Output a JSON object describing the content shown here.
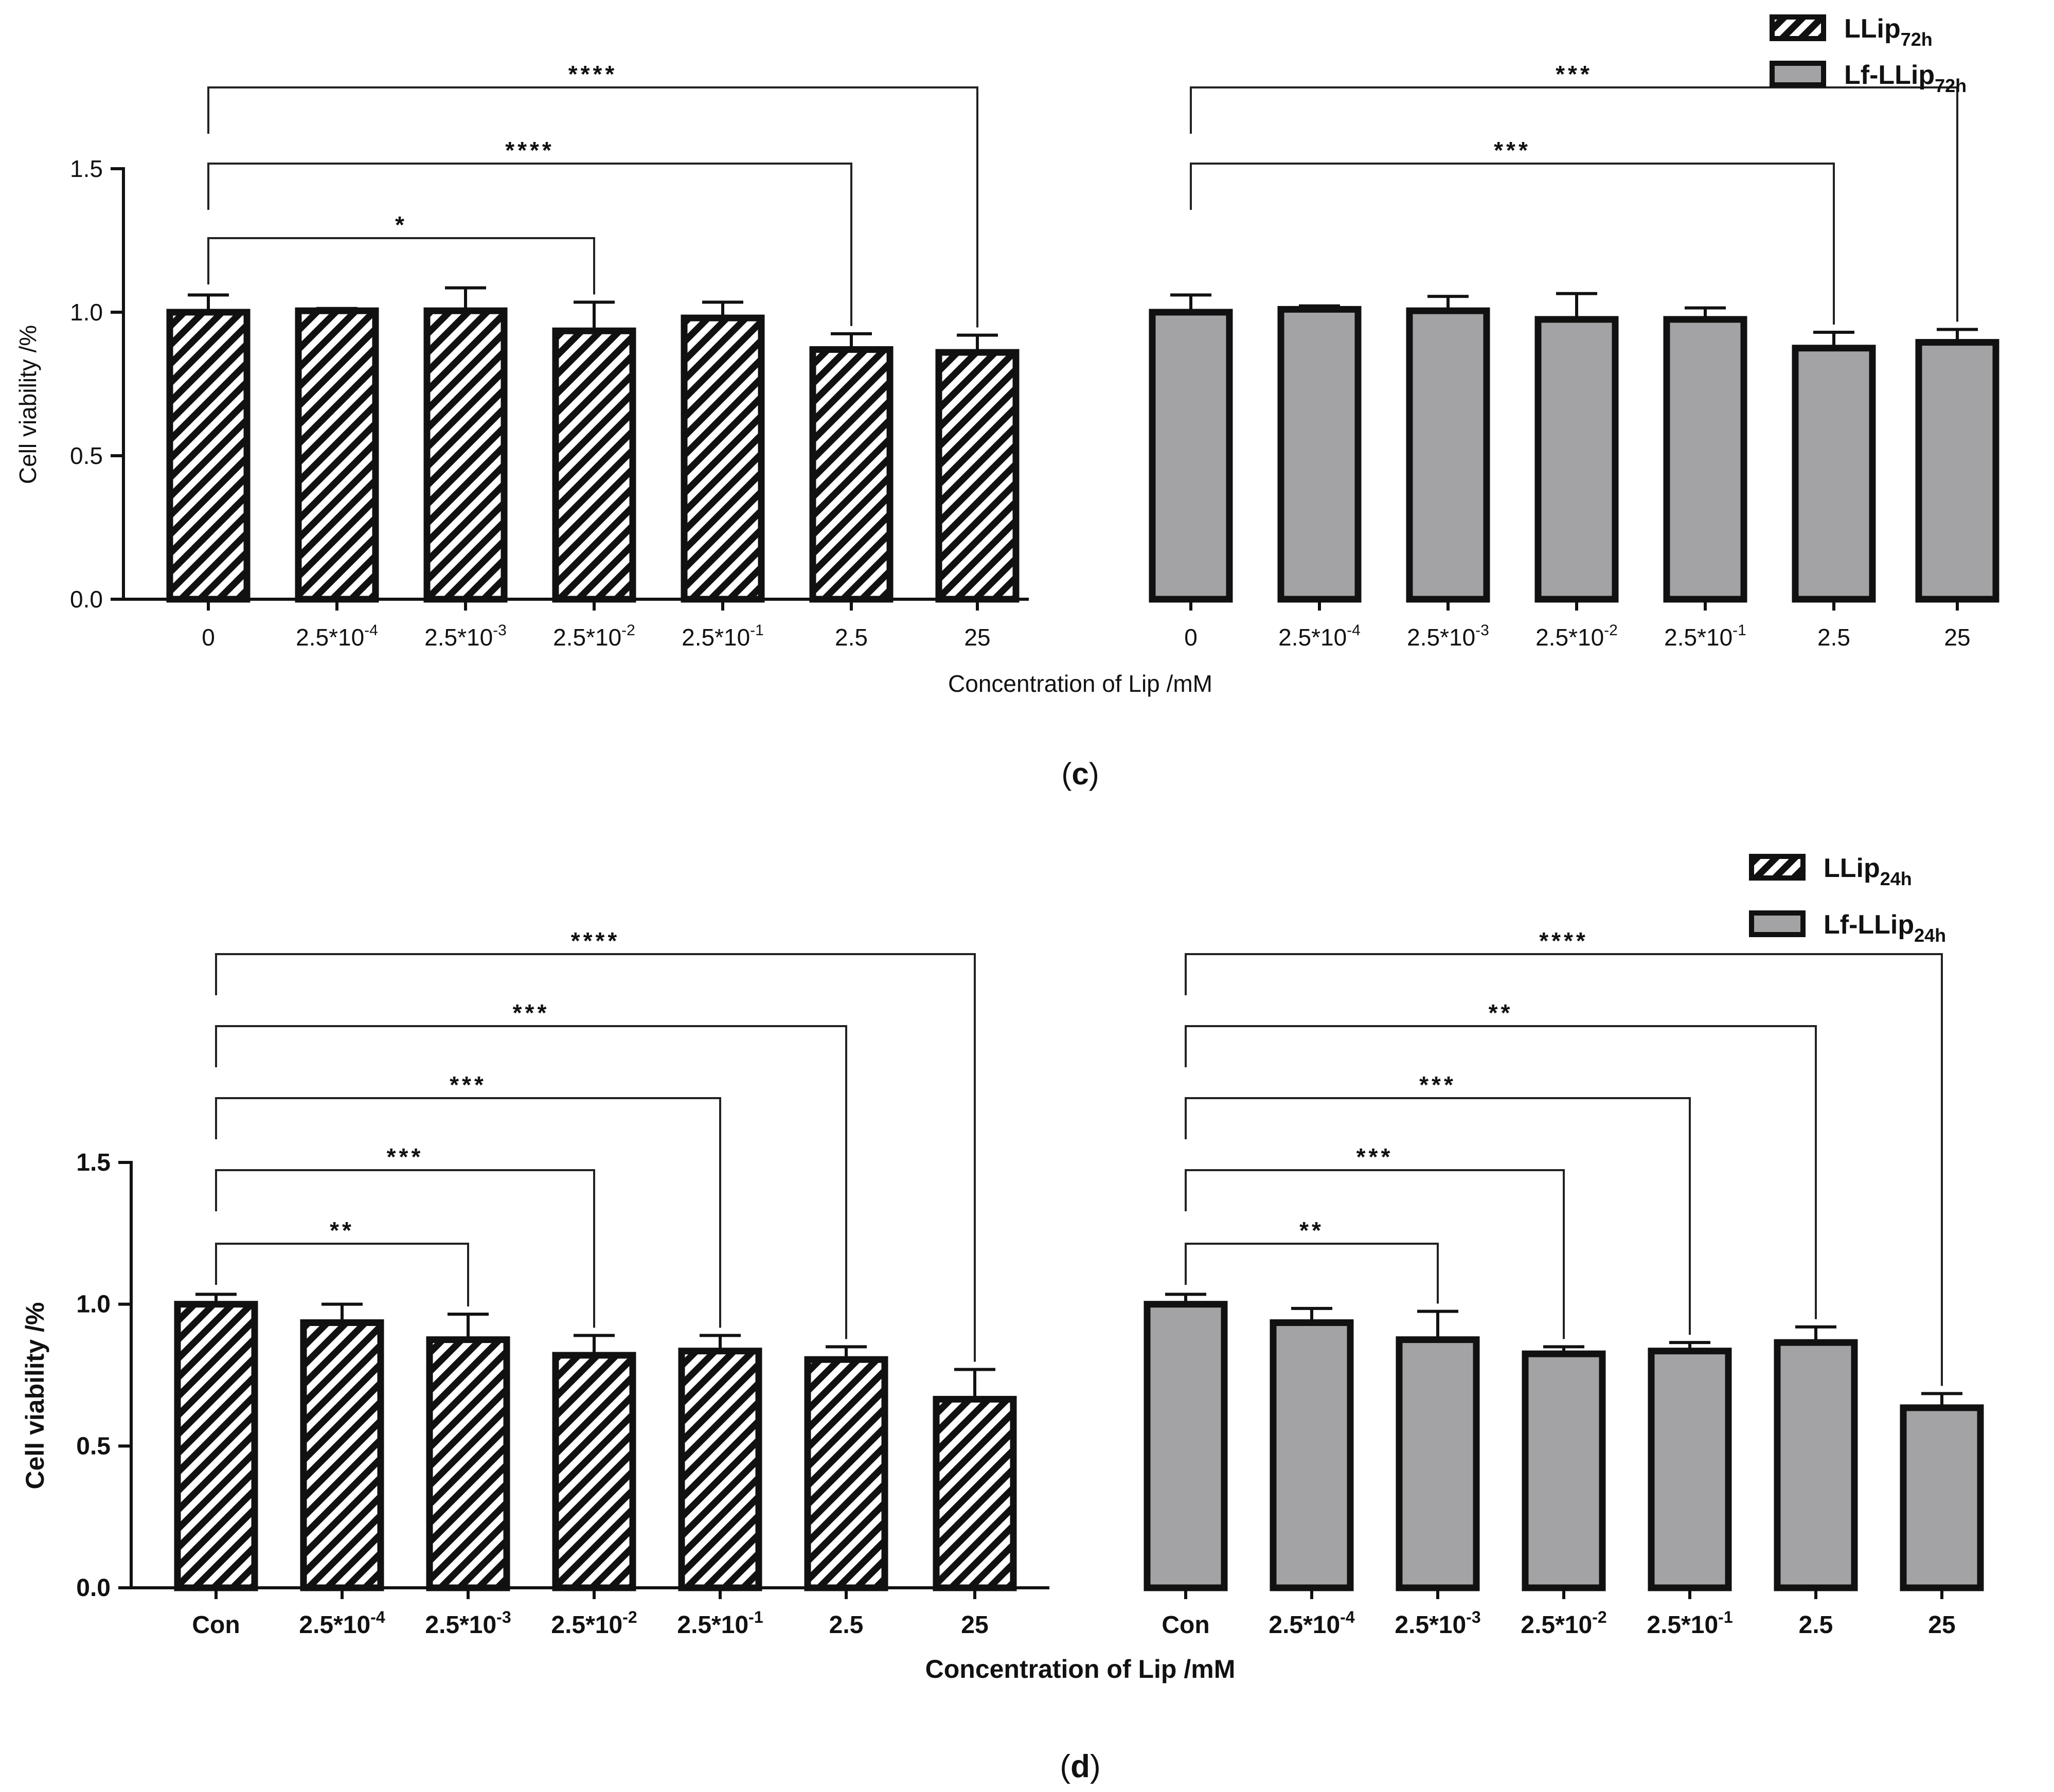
{
  "chart_data": [
    {
      "panel_label": "(c)",
      "type": "bar",
      "ylabel": "Cell viability /%",
      "xlabel": "Concentration of Lip /mM",
      "ylim": [
        0,
        1.5
      ],
      "yticks": [
        "0.0",
        "0.5",
        "1.0",
        "1.5"
      ],
      "bold_labels": false,
      "series": [
        {
          "name": "LLip72h",
          "name_main": "LLip",
          "name_sub": "72h",
          "fill": "hatch",
          "categories": [
            "0",
            "2.5*10-4",
            "2.5*10-3",
            "2.5*10-2",
            "2.5*10-1",
            "2.5",
            "25"
          ],
          "category_labels": [
            {
              "base": "0",
              "sup": ""
            },
            {
              "base": "2.5*10",
              "sup": "-4"
            },
            {
              "base": "2.5*10",
              "sup": "-3"
            },
            {
              "base": "2.5*10",
              "sup": "-2"
            },
            {
              "base": "2.5*10",
              "sup": "-1"
            },
            {
              "base": "2.5",
              "sup": ""
            },
            {
              "base": "25",
              "sup": ""
            }
          ],
          "values": [
            1.0,
            1.005,
            1.005,
            0.935,
            0.98,
            0.87,
            0.86
          ],
          "errors": [
            0.06,
            0.008,
            0.08,
            0.1,
            0.055,
            0.055,
            0.06
          ],
          "significance": [
            {
              "to": 3,
              "label": "*"
            },
            {
              "to": 5,
              "label": "****"
            },
            {
              "to": 6,
              "label": "****"
            }
          ]
        },
        {
          "name": "Lf-LLip72h",
          "name_main": "Lf-LLip",
          "name_sub": "72h",
          "fill": "#a3a3a6",
          "categories": [
            "0",
            "2.5*10-4",
            "2.5*10-3",
            "2.5*10-2",
            "2.5*10-1",
            "2.5",
            "25"
          ],
          "category_labels": [
            {
              "base": "0",
              "sup": ""
            },
            {
              "base": "2.5*10",
              "sup": "-4"
            },
            {
              "base": "2.5*10",
              "sup": "-3"
            },
            {
              "base": "2.5*10",
              "sup": "-2"
            },
            {
              "base": "2.5*10",
              "sup": "-1"
            },
            {
              "base": "2.5",
              "sup": ""
            },
            {
              "base": "25",
              "sup": ""
            }
          ],
          "values": [
            1.0,
            1.01,
            1.005,
            0.975,
            0.975,
            0.875,
            0.895
          ],
          "errors": [
            0.06,
            0.012,
            0.05,
            0.09,
            0.04,
            0.055,
            0.045
          ],
          "significance": [
            {
              "to": 5,
              "label": "***"
            },
            {
              "to": 6,
              "label": "***"
            }
          ]
        }
      ]
    },
    {
      "panel_label": "(d)",
      "type": "bar",
      "ylabel": "Cell viability /%",
      "xlabel": "Concentration of Lip /mM",
      "ylim": [
        0,
        1.5
      ],
      "yticks": [
        "0.0",
        "0.5",
        "1.0",
        "1.5"
      ],
      "bold_labels": true,
      "series": [
        {
          "name": "LLip24h",
          "name_main": "LLip",
          "name_sub": "24h",
          "fill": "hatch",
          "categories": [
            "Con",
            "2.5*10-4",
            "2.5*10-3",
            "2.5*10-2",
            "2.5*10-1",
            "2.5",
            "25"
          ],
          "category_labels": [
            {
              "base": "Con",
              "sup": ""
            },
            {
              "base": "2.5*10",
              "sup": "-4"
            },
            {
              "base": "2.5*10",
              "sup": "-3"
            },
            {
              "base": "2.5*10",
              "sup": "-2"
            },
            {
              "base": "2.5*10",
              "sup": "-1"
            },
            {
              "base": "2.5",
              "sup": ""
            },
            {
              "base": "25",
              "sup": ""
            }
          ],
          "values": [
            1.0,
            0.935,
            0.875,
            0.82,
            0.835,
            0.805,
            0.665
          ],
          "errors": [
            0.035,
            0.065,
            0.09,
            0.07,
            0.055,
            0.045,
            0.105
          ],
          "significance": [
            {
              "to": 2,
              "label": "**"
            },
            {
              "to": 3,
              "label": "***"
            },
            {
              "to": 4,
              "label": "***"
            },
            {
              "to": 5,
              "label": "***"
            },
            {
              "to": 6,
              "label": "****"
            }
          ]
        },
        {
          "name": "Lf-LLip24h",
          "name_main": "Lf-LLip",
          "name_sub": "24h",
          "fill": "#a3a3a6",
          "categories": [
            "Con",
            "2.5*10-4",
            "2.5*10-3",
            "2.5*10-2",
            "2.5*10-1",
            "2.5",
            "25"
          ],
          "category_labels": [
            {
              "base": "Con",
              "sup": ""
            },
            {
              "base": "2.5*10",
              "sup": "-4"
            },
            {
              "base": "2.5*10",
              "sup": "-3"
            },
            {
              "base": "2.5*10",
              "sup": "-2"
            },
            {
              "base": "2.5*10",
              "sup": "-1"
            },
            {
              "base": "2.5",
              "sup": ""
            },
            {
              "base": "25",
              "sup": ""
            }
          ],
          "values": [
            1.0,
            0.935,
            0.875,
            0.825,
            0.835,
            0.865,
            0.635
          ],
          "errors": [
            0.035,
            0.05,
            0.1,
            0.025,
            0.03,
            0.055,
            0.05
          ],
          "significance": [
            {
              "to": 2,
              "label": "**"
            },
            {
              "to": 3,
              "label": "***"
            },
            {
              "to": 4,
              "label": "***"
            },
            {
              "to": 5,
              "label": "**"
            },
            {
              "to": 6,
              "label": "****"
            }
          ]
        }
      ]
    }
  ]
}
